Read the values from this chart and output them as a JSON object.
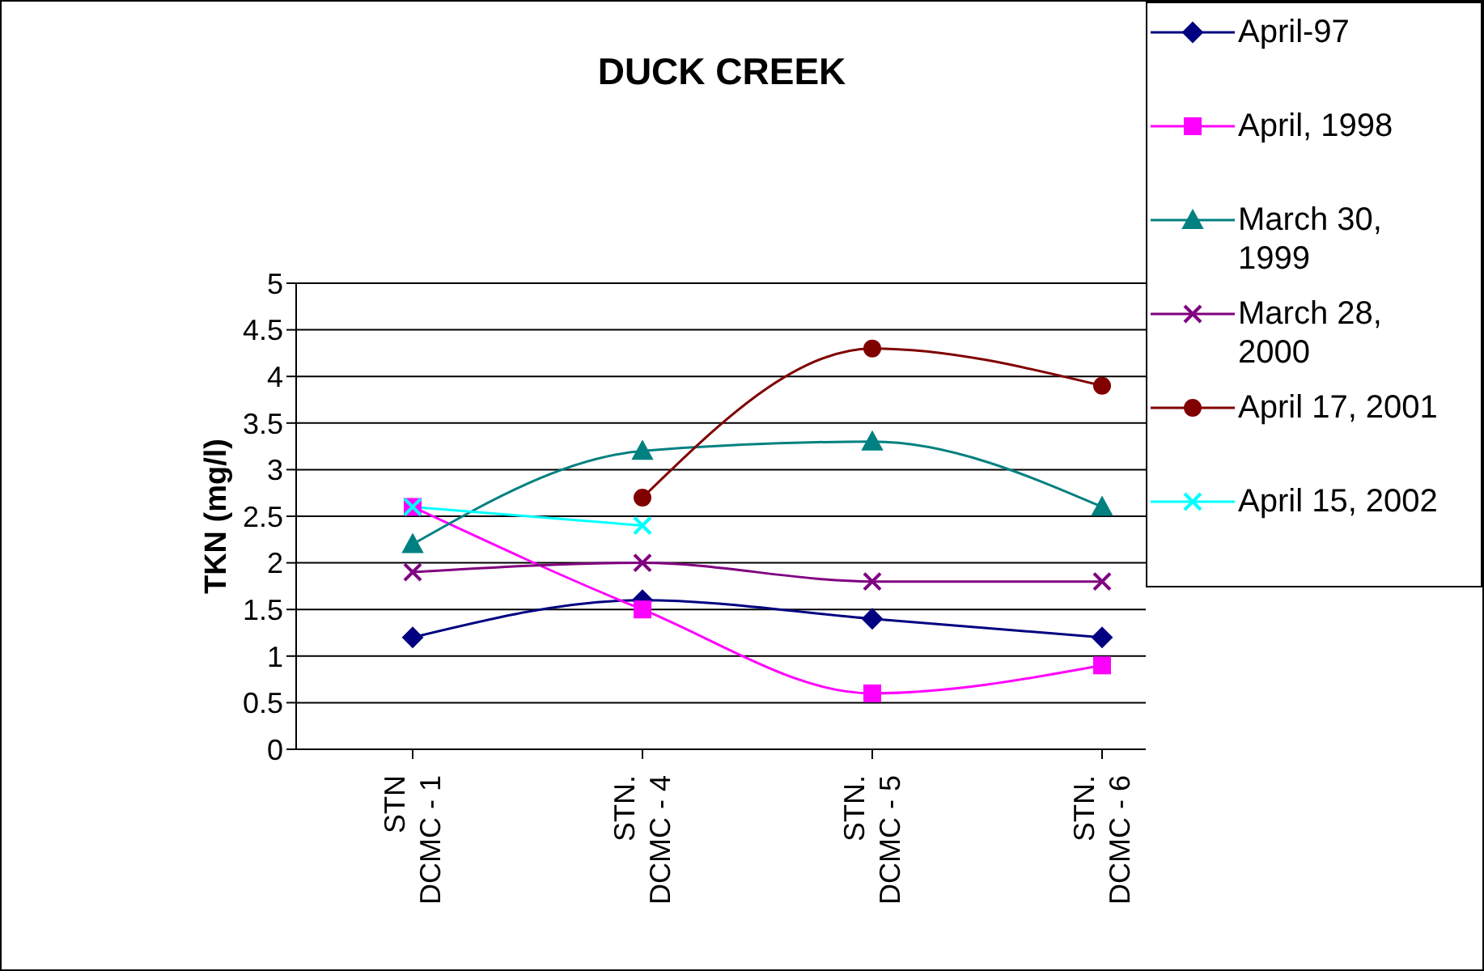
{
  "chart_data": {
    "type": "line",
    "title": "DUCK CREEK",
    "ylabel": "TKN (mg/l)",
    "categories": [
      "STN DCMC - 1",
      "STN. DCMC - 4",
      "STN. DCMC - 5",
      "STN. DCMC - 6"
    ],
    "ylim": [
      0,
      5
    ],
    "yticks": [
      0,
      0.5,
      1,
      1.5,
      2,
      2.5,
      3,
      3.5,
      4,
      4.5,
      5
    ],
    "grid": "y",
    "legend": "top right",
    "series": [
      {
        "name": "April-97",
        "color": "#000080",
        "marker": "diamond",
        "values": [
          1.2,
          1.6,
          1.4,
          1.2
        ]
      },
      {
        "name": "April, 1998",
        "color": "#ff00ff",
        "marker": "square",
        "values": [
          2.6,
          1.5,
          0.6,
          0.9
        ]
      },
      {
        "name": "March 30, 1999",
        "color": "#008080",
        "marker": "triangle",
        "values": [
          2.2,
          3.2,
          3.3,
          2.6
        ]
      },
      {
        "name": "March 28, 2000",
        "color": "#800080",
        "marker": "cross",
        "values": [
          1.9,
          2.0,
          1.8,
          1.8
        ]
      },
      {
        "name": "April 17, 2001",
        "color": "#800000",
        "marker": "circle",
        "values": [
          null,
          2.7,
          4.3,
          3.9
        ]
      },
      {
        "name": "April 15, 2002",
        "color": "#00ffff",
        "marker": "cross",
        "values": [
          2.6,
          2.4,
          null,
          null
        ]
      }
    ]
  }
}
